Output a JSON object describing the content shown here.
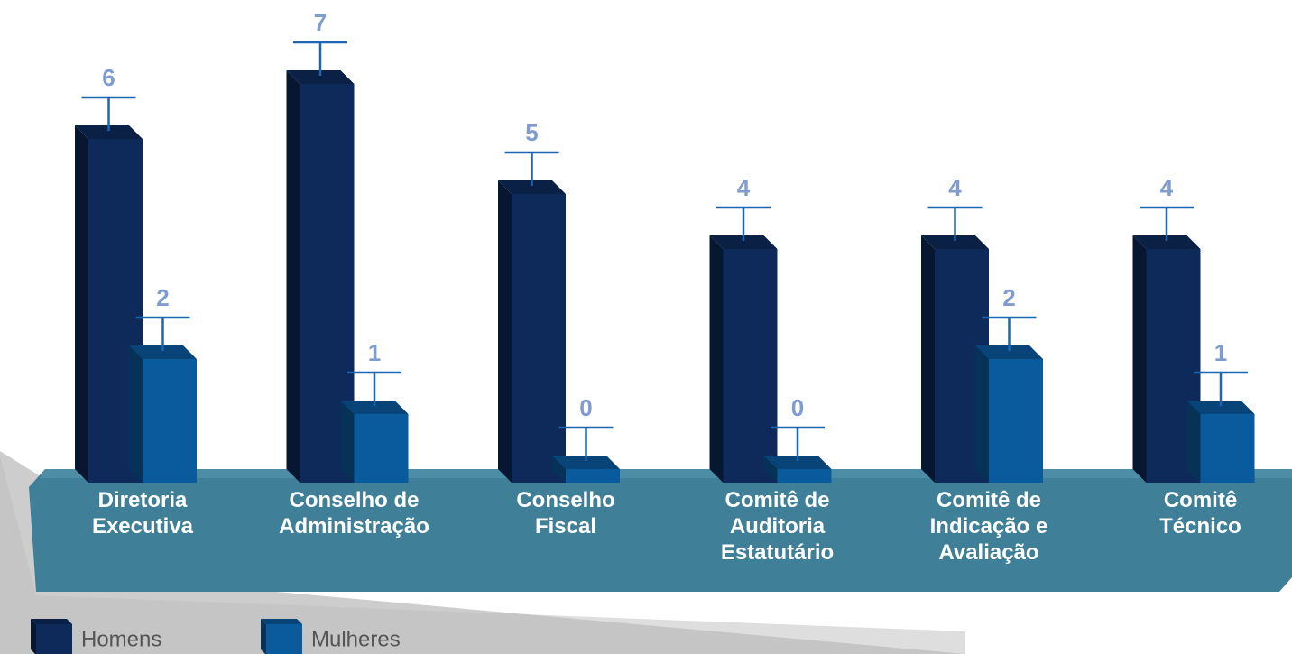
{
  "chart_data": {
    "type": "bar3d",
    "categories": [
      "Diretoria Executiva",
      "Conselho de Administração",
      "Conselho Fiscal",
      "Comitê de Auditoria Estatutário",
      "Comitê de Indicação e Avaliação",
      "Comitê Técnico"
    ],
    "series": [
      {
        "name": "Homens",
        "color": "#0d2a5a",
        "values": [
          6,
          7,
          5,
          4,
          4,
          4
        ]
      },
      {
        "name": "Mulheres",
        "color": "#0a5a9e",
        "values": [
          2,
          1,
          0,
          0,
          2,
          1
        ]
      }
    ],
    "legend": "bottom-left"
  }
}
